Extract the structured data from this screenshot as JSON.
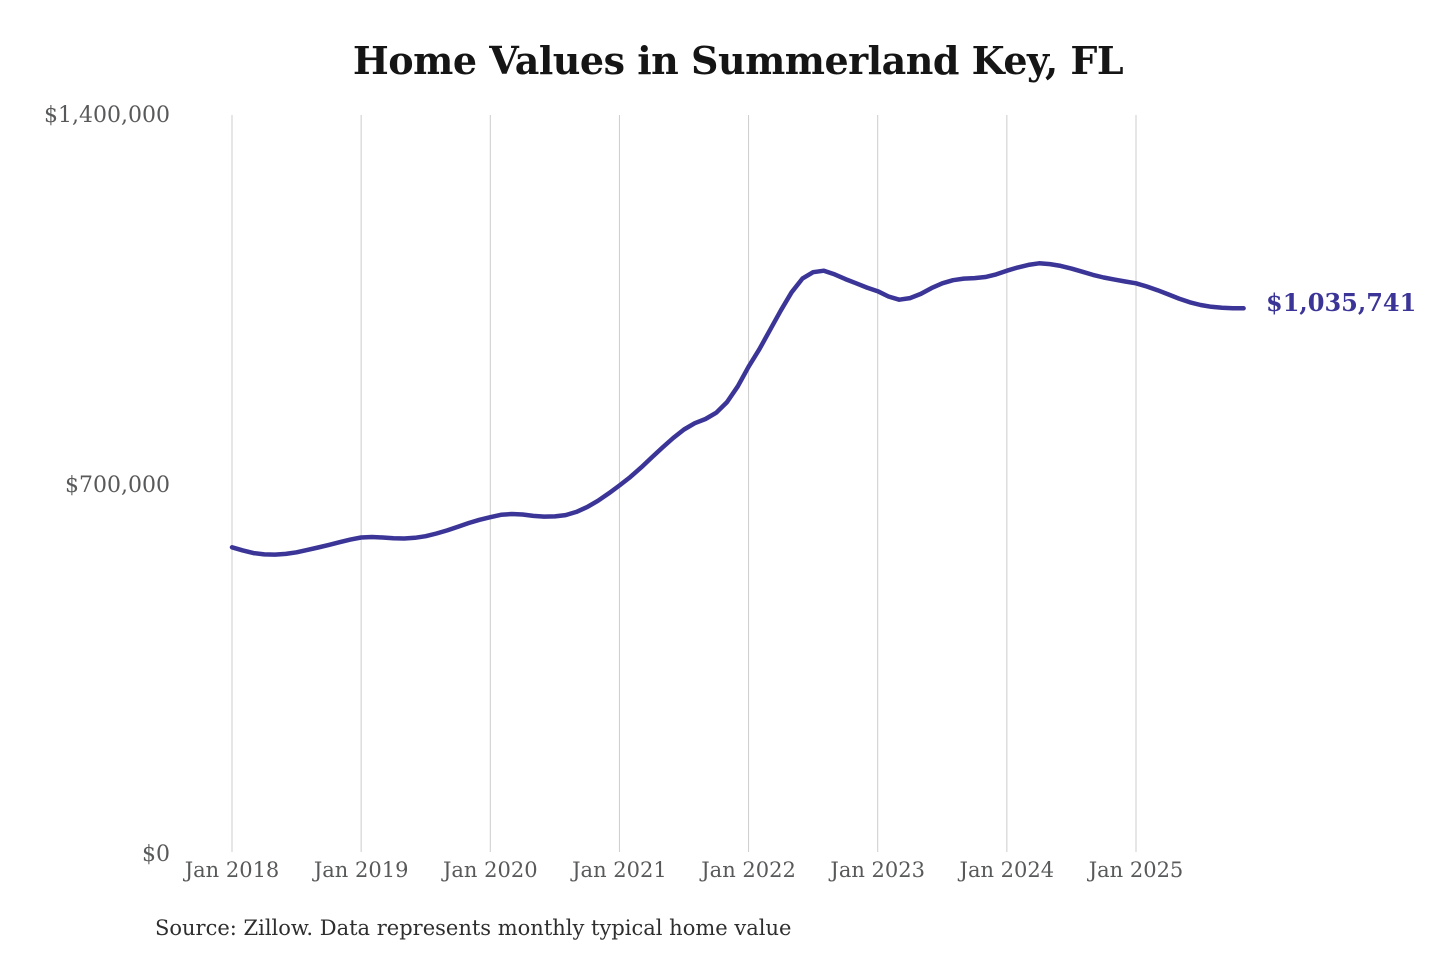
{
  "colors": {
    "background": "#ffffff",
    "line": "#3b3597",
    "grid": "#cccccc",
    "axis_text": "#58595a",
    "title_text": "#151515",
    "source_text": "#2e2e2e"
  },
  "chart_data": {
    "type": "line",
    "title": "Home Values in Summerland Key, FL",
    "ylabel": "",
    "xlabel": "",
    "unit": "USD",
    "grid": "vertical",
    "legend": "none",
    "line_color": "#3b3597",
    "ylim": [
      0,
      1400000
    ],
    "y_ticks": [
      0,
      700000,
      1400000
    ],
    "y_tick_labels": [
      "$0",
      "$700,000",
      "$1,400,000"
    ],
    "x_tick_labels": [
      "Jan 2018",
      "Jan 2019",
      "Jan 2020",
      "Jan 2021",
      "Jan 2022",
      "Jan 2023",
      "Jan 2024",
      "Jan 2025"
    ],
    "final_value": 1035741,
    "final_value_label": "$1,035,741",
    "source": "Source: Zillow. Data represents monthly typical home value",
    "x": [
      "2018-01",
      "2018-02",
      "2018-03",
      "2018-04",
      "2018-05",
      "2018-06",
      "2018-07",
      "2018-08",
      "2018-09",
      "2018-10",
      "2018-11",
      "2018-12",
      "2019-01",
      "2019-02",
      "2019-03",
      "2019-04",
      "2019-05",
      "2019-06",
      "2019-07",
      "2019-08",
      "2019-09",
      "2019-10",
      "2019-11",
      "2019-12",
      "2020-01",
      "2020-02",
      "2020-03",
      "2020-04",
      "2020-05",
      "2020-06",
      "2020-07",
      "2020-08",
      "2020-09",
      "2020-10",
      "2020-11",
      "2020-12",
      "2021-01",
      "2021-02",
      "2021-03",
      "2021-04",
      "2021-05",
      "2021-06",
      "2021-07",
      "2021-08",
      "2021-09",
      "2021-10",
      "2021-11",
      "2021-12",
      "2022-01",
      "2022-02",
      "2022-03",
      "2022-04",
      "2022-05",
      "2022-06",
      "2022-07",
      "2022-08",
      "2022-09",
      "2022-10",
      "2022-11",
      "2022-12",
      "2023-01",
      "2023-02",
      "2023-03",
      "2023-04",
      "2023-05",
      "2023-06",
      "2023-07",
      "2023-08",
      "2023-09",
      "2023-10",
      "2023-11",
      "2023-12",
      "2024-01",
      "2024-02",
      "2024-03",
      "2024-04",
      "2024-05",
      "2024-06",
      "2024-07",
      "2024-08",
      "2024-09",
      "2024-10",
      "2024-11",
      "2024-12",
      "2025-01",
      "2025-02",
      "2025-03",
      "2025-04",
      "2025-05",
      "2025-06",
      "2025-07",
      "2025-08",
      "2025-09",
      "2025-10",
      "2025-11"
    ],
    "values": [
      583000,
      577000,
      572000,
      569500,
      569000,
      570500,
      573500,
      578000,
      582500,
      587500,
      592500,
      597500,
      601500,
      602500,
      601500,
      600000,
      599500,
      601000,
      604000,
      609000,
      615000,
      622000,
      629000,
      635000,
      640000,
      644500,
      646000,
      645000,
      642500,
      641000,
      641500,
      644000,
      650000,
      659000,
      671000,
      685000,
      700000,
      716000,
      734000,
      753000,
      772000,
      790000,
      806000,
      818000,
      826000,
      838000,
      858000,
      888000,
      925000,
      958000,
      995000,
      1032000,
      1066000,
      1092000,
      1104000,
      1107000,
      1100000,
      1091000,
      1083000,
      1075000,
      1068000,
      1058000,
      1052000,
      1055000,
      1063000,
      1074000,
      1083000,
      1089000,
      1092000,
      1093000,
      1095000,
      1100000,
      1107000,
      1113000,
      1118000,
      1121000,
      1119500,
      1116000,
      1111000,
      1105000,
      1099000,
      1094000,
      1090000,
      1086500,
      1083000,
      1077000,
      1070000,
      1062000,
      1054000,
      1047000,
      1042000,
      1038500,
      1036800,
      1035900,
      1035741
    ]
  }
}
